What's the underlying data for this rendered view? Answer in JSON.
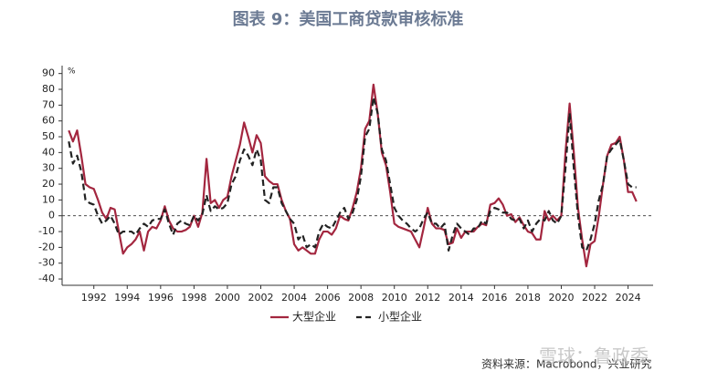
{
  "chart_data": {
    "type": "line",
    "title": "图表 9：美国工商贷款审核标准",
    "y_unit": "%",
    "source": "资料来源：Macrobond，兴业研究",
    "watermark": "雪球：鲁政委",
    "x": [
      1990.5,
      1990.75,
      1991,
      1991.25,
      1991.5,
      1991.75,
      1992,
      1992.25,
      1992.5,
      1992.75,
      1993,
      1993.25,
      1993.5,
      1993.75,
      1994,
      1994.25,
      1994.5,
      1994.75,
      1995,
      1995.25,
      1995.5,
      1995.75,
      1996,
      1996.25,
      1996.5,
      1996.75,
      1997,
      1997.25,
      1997.5,
      1997.75,
      1998,
      1998.25,
      1998.5,
      1998.75,
      1999,
      1999.25,
      1999.5,
      1999.75,
      2000,
      2000.25,
      2000.5,
      2000.75,
      2001,
      2001.25,
      2001.5,
      2001.75,
      2002,
      2002.25,
      2002.5,
      2002.75,
      2003,
      2003.25,
      2003.5,
      2003.75,
      2004,
      2004.25,
      2004.5,
      2004.75,
      2005,
      2005.25,
      2005.5,
      2005.75,
      2006,
      2006.25,
      2006.5,
      2006.75,
      2007,
      2007.25,
      2007.5,
      2007.75,
      2008,
      2008.25,
      2008.5,
      2008.75,
      2009,
      2009.25,
      2009.5,
      2009.75,
      2010,
      2010.25,
      2010.5,
      2010.75,
      2011,
      2011.25,
      2011.5,
      2011.75,
      2012,
      2012.25,
      2012.5,
      2012.75,
      2013,
      2013.25,
      2013.5,
      2013.75,
      2014,
      2014.25,
      2014.5,
      2014.75,
      2015,
      2015.25,
      2015.5,
      2015.75,
      2016,
      2016.25,
      2016.5,
      2016.75,
      2017,
      2017.25,
      2017.5,
      2017.75,
      2018,
      2018.25,
      2018.5,
      2018.75,
      2019,
      2019.25,
      2019.5,
      2019.75,
      2020,
      2020.25,
      2020.5,
      2020.75,
      2021,
      2021.25,
      2021.5,
      2021.75,
      2022,
      2022.25,
      2022.5,
      2022.75,
      2023,
      2023.25,
      2023.5,
      2023.75,
      2024,
      2024.25,
      2024.5
    ],
    "series": [
      {
        "name": "大型企业",
        "color": "#a3263f",
        "dash": false,
        "values": [
          54,
          47,
          54,
          38,
          20,
          18,
          17,
          10,
          2,
          -2,
          5,
          4,
          -10,
          -24,
          -20,
          -18,
          -15,
          -10,
          -22,
          -10,
          -7,
          -8,
          -3,
          6,
          -3,
          -8,
          -10,
          -10,
          -9,
          -7,
          0,
          -7,
          2,
          36,
          8,
          10,
          5,
          10,
          12,
          25,
          35,
          45,
          59,
          50,
          40,
          51,
          46,
          25,
          22,
          20,
          20,
          10,
          3,
          -2,
          -18,
          -22,
          -20,
          -22,
          -24,
          -24,
          -15,
          -10,
          -10,
          -12,
          -8,
          0,
          -2,
          -3,
          5,
          15,
          30,
          55,
          60,
          83,
          65,
          40,
          32,
          15,
          -5,
          -7,
          -8,
          -9,
          -10,
          -15,
          -20,
          -8,
          5,
          -5,
          -8,
          -8,
          -9,
          -18,
          -17,
          -8,
          -14,
          -10,
          -10,
          -10,
          -7,
          -5,
          -6,
          7,
          8,
          11,
          7,
          0,
          1,
          -4,
          -1,
          -6,
          -10,
          -11,
          -15,
          -15,
          3,
          -3,
          0,
          -3,
          0,
          40,
          71,
          40,
          5,
          -15,
          -32,
          -18,
          -16,
          0,
          20,
          38,
          45,
          46,
          50,
          35,
          15,
          15,
          9
        ]
      },
      {
        "name": "小型企业",
        "color": "#222222",
        "dash": true,
        "values": [
          47,
          33,
          38,
          28,
          10,
          8,
          7,
          0,
          -5,
          -3,
          0,
          -5,
          -12,
          -10,
          -10,
          -10,
          -12,
          -8,
          -5,
          -7,
          -3,
          -2,
          -2,
          4,
          -5,
          -12,
          -5,
          -3,
          -5,
          -6,
          0,
          -3,
          1,
          13,
          3,
          6,
          4,
          5,
          8,
          20,
          25,
          35,
          42,
          38,
          32,
          42,
          35,
          10,
          8,
          18,
          18,
          8,
          3,
          -2,
          -5,
          -15,
          -12,
          -20,
          -18,
          -20,
          -10,
          -5,
          -7,
          -8,
          -3,
          2,
          5,
          -2,
          2,
          10,
          25,
          50,
          55,
          75,
          65,
          42,
          35,
          20,
          5,
          0,
          -3,
          -5,
          -8,
          -10,
          -8,
          -2,
          2,
          -5,
          -5,
          -8,
          -5,
          -22,
          -12,
          -5,
          -8,
          -10,
          -12,
          -8,
          -8,
          -3,
          -5,
          3,
          5,
          4,
          2,
          2,
          -2,
          -3,
          -2,
          -8,
          -3,
          -10,
          -5,
          -2,
          -3,
          3,
          -3,
          -5,
          0,
          30,
          65,
          30,
          0,
          -20,
          -22,
          -15,
          -5,
          10,
          20,
          38,
          42,
          45,
          48,
          35,
          20,
          18,
          18
        ]
      }
    ],
    "xlim": [
      1990.1,
      2025.5
    ],
    "xticks": [
      1992,
      1994,
      1996,
      1998,
      2000,
      2002,
      2004,
      2006,
      2008,
      2010,
      2012,
      2014,
      2016,
      2018,
      2020,
      2022,
      2024
    ],
    "ylim": [
      -44,
      95
    ],
    "yticks": [
      -40,
      -30,
      -20,
      -10,
      0,
      10,
      20,
      30,
      40,
      50,
      60,
      70,
      80,
      90
    ],
    "zero_line": true
  }
}
